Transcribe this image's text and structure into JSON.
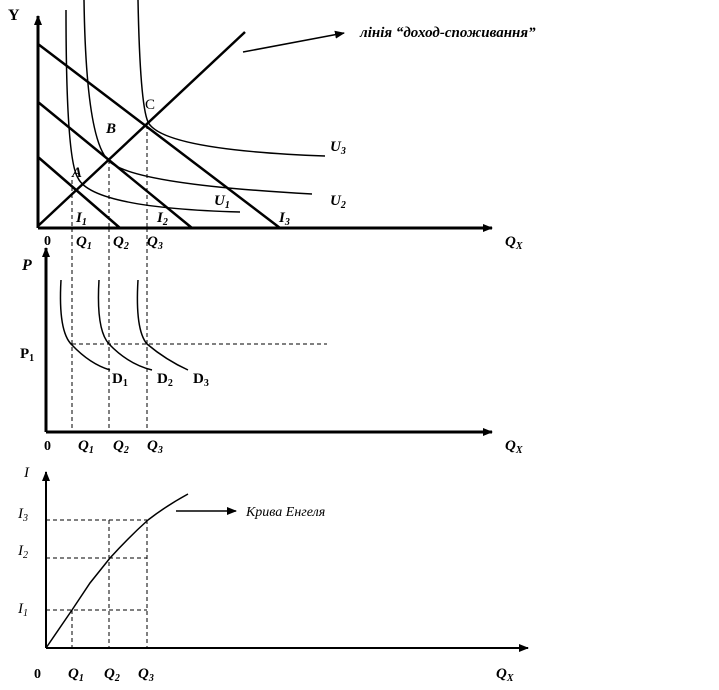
{
  "panel1": {
    "y_axis": "Y",
    "x_axis_q": "Q",
    "x_axis_sub": "X",
    "origin": "0",
    "q_ticks": [
      {
        "q": "Q",
        "sub": "1"
      },
      {
        "q": "Q",
        "sub": "2"
      },
      {
        "q": "Q",
        "sub": "3"
      }
    ],
    "points": [
      "A",
      "B",
      "C"
    ],
    "budget_labels": [
      {
        "i": "I",
        "sub": "1"
      },
      {
        "i": "I",
        "sub": "2"
      },
      {
        "i": "I",
        "sub": "3"
      }
    ],
    "utility_labels": [
      {
        "u": "U",
        "sub": "1"
      },
      {
        "u": "U",
        "sub": "2"
      },
      {
        "u": "U",
        "sub": "3"
      }
    ],
    "annotation": "лінія “доход-споживання”"
  },
  "panel2": {
    "y_axis": "P",
    "x_axis_q": "Q",
    "x_axis_sub": "X",
    "origin": "0",
    "price_label": "P",
    "price_sub": "1",
    "q_ticks": [
      {
        "q": "Q",
        "sub": "1"
      },
      {
        "q": "Q",
        "sub": "2"
      },
      {
        "q": "Q",
        "sub": "3"
      }
    ],
    "demand_labels": [
      {
        "d": "D",
        "sub": "1"
      },
      {
        "d": "D",
        "sub": "2"
      },
      {
        "d": "D",
        "sub": "3"
      }
    ]
  },
  "panel3": {
    "y_axis": "I",
    "x_axis_q": "Q",
    "x_axis_sub": "X",
    "origin": "0",
    "income_ticks": [
      {
        "i": "I",
        "sub": "3"
      },
      {
        "i": "I",
        "sub": "2"
      },
      {
        "i": "I",
        "sub": "1"
      }
    ],
    "q_ticks": [
      {
        "q": "Q",
        "sub": "1"
      },
      {
        "q": "Q",
        "sub": "2"
      },
      {
        "q": "Q",
        "sub": "3"
      }
    ],
    "annotation": "Крива Енгеля"
  }
}
